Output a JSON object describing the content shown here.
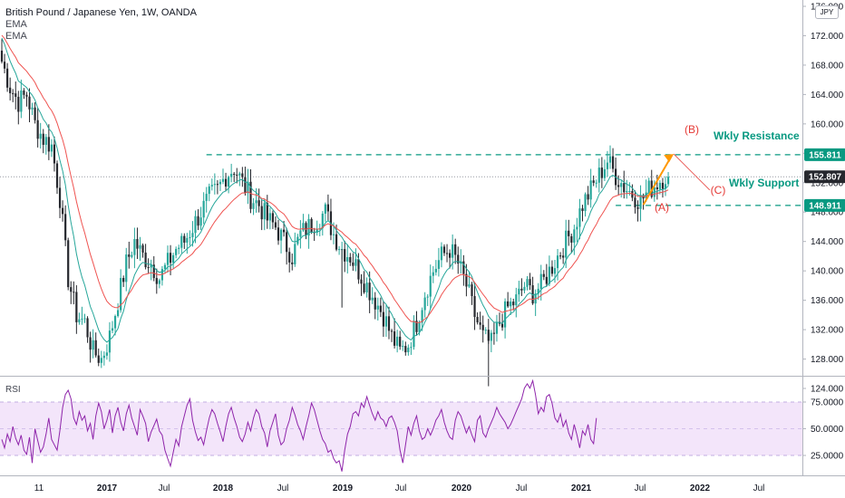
{
  "header": {
    "title": "British Pound / Japanese Yen, 1W, OANDA",
    "indicators": [
      "EMA",
      "EMA"
    ],
    "currency_badge": "JPY"
  },
  "rsi_panel": {
    "label": "RSI"
  },
  "colors": {
    "bull": "#26a69a",
    "bear": "#26282e",
    "ema_fast": "#26a69a",
    "ema_slow": "#ef5350",
    "annotation_green": "#089981",
    "annotation_red": "#e53935",
    "arrow": "#ff9800",
    "rsi_line": "#8e24aa",
    "rsi_band": "#f3e5fa"
  },
  "chart_data": [
    {
      "type": "candlestick",
      "title": "British Pound / Japanese Yen, 1W, OANDA",
      "x_tick_labels": [
        "11",
        "2017",
        "Jul",
        "2018",
        "Jul",
        "2019",
        "Jul",
        "2020",
        "Jul",
        "2021",
        "Jul",
        "2022",
        "Jul"
      ],
      "y_tick_labels": [
        "176.000",
        "172.000",
        "168.000",
        "164.000",
        "160.000",
        "156.000",
        "152.000",
        "148.000",
        "144.000",
        "140.000",
        "136.000",
        "132.000",
        "128.000",
        "124.000"
      ],
      "ylim": [
        122.5,
        176.5
      ],
      "close_path": [
        [
          0,
          168.5
        ],
        [
          3,
          165
        ],
        [
          6,
          163
        ],
        [
          9,
          164
        ],
        [
          12,
          160
        ],
        [
          15,
          158
        ],
        [
          18,
          157
        ],
        [
          21,
          150
        ],
        [
          24,
          139
        ],
        [
          27,
          134
        ],
        [
          30,
          133
        ],
        [
          33,
          129
        ],
        [
          36,
          128
        ],
        [
          39,
          131
        ],
        [
          42,
          136
        ],
        [
          45,
          141
        ],
        [
          48,
          144
        ],
        [
          51,
          142
        ],
        [
          54,
          141
        ],
        [
          57,
          139
        ],
        [
          60,
          141
        ],
        [
          63,
          143
        ],
        [
          66,
          144
        ],
        [
          69,
          146
        ],
        [
          72,
          148
        ],
        [
          75,
          150
        ],
        [
          78,
          151
        ],
        [
          81,
          153
        ],
        [
          84,
          154
        ],
        [
          87,
          152
        ],
        [
          90,
          150
        ],
        [
          93,
          149
        ],
        [
          96,
          147
        ],
        [
          99,
          146
        ],
        [
          102,
          144
        ],
        [
          105,
          142
        ],
        [
          108,
          145
        ],
        [
          111,
          146
        ],
        [
          114,
          147
        ],
        [
          117,
          148
        ],
        [
          120,
          145
        ],
        [
          123,
          143
        ],
        [
          126,
          142
        ],
        [
          129,
          140
        ],
        [
          132,
          138
        ],
        [
          135,
          136
        ],
        [
          138,
          134
        ],
        [
          141,
          131
        ],
        [
          144,
          129
        ],
        [
          147,
          130
        ],
        [
          150,
          133
        ],
        [
          153,
          137
        ],
        [
          156,
          140
        ],
        [
          159,
          142
        ],
        [
          162,
          143
        ],
        [
          165,
          141
        ],
        [
          168,
          138
        ],
        [
          171,
          134
        ],
        [
          174,
          131
        ],
        [
          177,
          130
        ],
        [
          180,
          133
        ],
        [
          183,
          135
        ],
        [
          186,
          136
        ],
        [
          189,
          138
        ],
        [
          192,
          137
        ],
        [
          195,
          138
        ],
        [
          198,
          140
        ],
        [
          201,
          142
        ],
        [
          204,
          144
        ],
        [
          207,
          146
        ],
        [
          210,
          149
        ],
        [
          213,
          151
        ],
        [
          216,
          153
        ],
        [
          219,
          155
        ],
        [
          222,
          153
        ],
        [
          225,
          151.5
        ],
        [
          228,
          150.5
        ],
        [
          231,
          149.5
        ],
        [
          234,
          151
        ],
        [
          237,
          152
        ],
        [
          240,
          153
        ],
        [
          241,
          152.8
        ]
      ],
      "candle_count": 242,
      "ema_fast_lag": 9,
      "ema_slow_lag": 19,
      "last_price": "152.807",
      "price_labels": [
        {
          "value": 155.811,
          "text": "155.811",
          "color": "#089981"
        },
        {
          "value": 152.807,
          "text": "152.807",
          "color": "#26282e"
        },
        {
          "value": 148.911,
          "text": "148.911",
          "color": "#089981"
        }
      ],
      "annotations": [
        {
          "text": "Wkly Resistance",
          "color": "#089981"
        },
        {
          "text": "Wkly Support",
          "color": "#089981"
        },
        {
          "text": "(B)",
          "color": "#e53935"
        },
        {
          "text": "(A)",
          "color": "#e53935"
        },
        {
          "text": "(C)",
          "color": "#e53935"
        }
      ],
      "resistance": 155.811,
      "support": 148.911,
      "projection": {
        "start": [
          232,
          149
        ],
        "to_B": [
          243,
          155.9
        ],
        "to_C": [
          256,
          151
        ]
      }
    },
    {
      "type": "line",
      "title": "RSI",
      "ylim": [
        0,
        100
      ],
      "y_tick_labels": [
        "75.0000",
        "50.0000",
        "25.0000"
      ],
      "band": [
        25,
        75
      ],
      "midline": 50,
      "values": [
        40,
        32,
        45,
        38,
        52,
        41,
        35,
        44,
        30,
        26,
        42,
        18,
        50,
        39,
        28,
        33,
        45,
        60,
        40,
        35,
        30,
        48,
        70,
        82,
        86,
        78,
        60,
        54,
        66,
        58,
        62,
        48,
        55,
        40,
        62,
        74,
        66,
        50,
        58,
        68,
        46,
        62,
        70,
        56,
        48,
        64,
        72,
        60,
        52,
        44,
        68,
        62,
        55,
        38,
        47,
        53,
        59,
        48,
        44,
        30,
        22,
        15,
        28,
        40,
        34,
        52,
        62,
        72,
        78,
        58,
        47,
        39,
        42,
        35,
        48,
        60,
        68,
        64,
        55,
        47,
        38,
        52,
        64,
        70,
        60,
        52,
        42,
        38,
        45,
        56,
        48,
        60,
        68,
        64,
        52,
        46,
        33,
        48,
        56,
        64,
        44,
        35,
        38,
        50,
        58,
        70,
        63,
        54,
        48,
        40,
        52,
        62,
        74,
        68,
        58,
        48,
        40,
        36,
        28,
        30,
        22,
        18,
        20,
        10,
        30,
        45,
        52,
        64,
        66,
        62,
        74,
        70,
        80,
        72,
        64,
        58,
        66,
        60,
        58,
        52,
        60,
        62,
        56,
        48,
        30,
        18,
        35,
        52,
        44,
        55,
        62,
        48,
        40,
        42,
        50,
        44,
        50,
        58,
        62,
        68,
        56,
        48,
        42,
        40,
        58,
        66,
        62,
        54,
        46,
        52,
        44,
        38,
        58,
        62,
        46,
        42,
        50,
        56,
        62,
        70,
        64,
        60,
        56,
        50,
        54,
        60,
        66,
        72,
        78,
        88,
        92,
        88,
        95,
        82,
        64,
        70,
        66,
        80,
        82,
        74,
        60,
        56,
        64,
        52,
        58,
        46,
        40,
        54,
        44,
        32,
        48,
        44,
        54,
        40,
        36,
        60
      ]
    }
  ]
}
